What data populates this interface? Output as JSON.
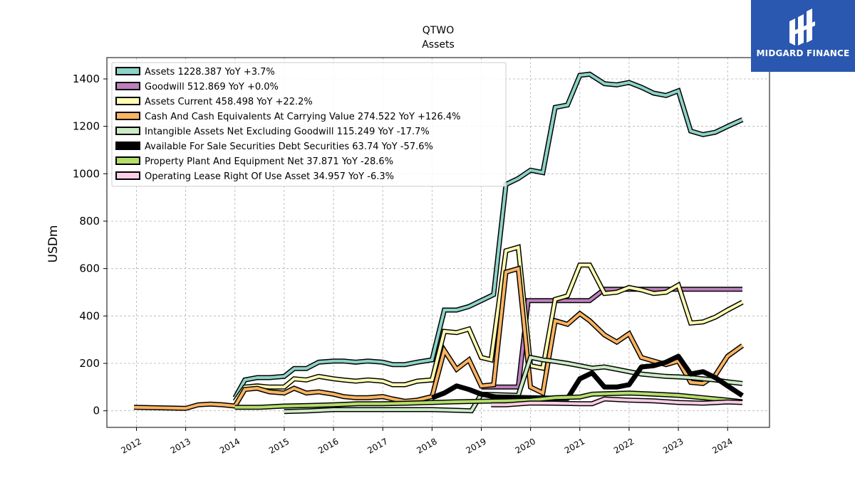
{
  "brand": {
    "name": "MIDGARD FINANCE"
  },
  "chart_data": {
    "type": "line",
    "title": "QTWO",
    "subtitle": "Assets",
    "ylabel": "USDm",
    "xlabel": "",
    "ylim": [
      -70,
      1490
    ],
    "xlim": [
      2011.4,
      2024.85
    ],
    "yticks": [
      0,
      200,
      400,
      600,
      800,
      1000,
      1200,
      1400
    ],
    "xticks": [
      "2012",
      "2013",
      "2014",
      "2015",
      "2016",
      "2017",
      "2018",
      "2019",
      "2020",
      "2021",
      "2022",
      "2023",
      "2024"
    ],
    "grid": true,
    "legend_position": "top-left",
    "series": [
      {
        "name": "Assets",
        "legend": "Assets  1228.387 YoY +3.7%",
        "color": "#8dd3c7",
        "width": 4,
        "x": [
          2014.0,
          2014.2,
          2014.45,
          2014.7,
          2015.0,
          2015.2,
          2015.45,
          2015.7,
          2016.0,
          2016.2,
          2016.45,
          2016.7,
          2017.0,
          2017.2,
          2017.45,
          2017.7,
          2018.0,
          2018.25,
          2018.5,
          2018.75,
          2019.0,
          2019.25,
          2019.5,
          2019.75,
          2020.0,
          2020.25,
          2020.5,
          2020.75,
          2021.0,
          2021.2,
          2021.5,
          2021.75,
          2022.0,
          2022.25,
          2022.5,
          2022.75,
          2023.0,
          2023.25,
          2023.5,
          2023.75,
          2024.0,
          2024.3
        ],
        "y": [
          55,
          130,
          140,
          140,
          145,
          178,
          178,
          205,
          210,
          210,
          205,
          210,
          205,
          195,
          195,
          205,
          215,
          425,
          425,
          440,
          465,
          490,
          955,
          980,
          1015,
          1005,
          1280,
          1290,
          1415,
          1420,
          1380,
          1375,
          1385,
          1365,
          1340,
          1330,
          1350,
          1180,
          1165,
          1175,
          1200,
          1228
        ]
      },
      {
        "name": "Goodwill",
        "legend": "Goodwill  512.869 YoY +0.0%",
        "color": "#bc80bd",
        "width": 4,
        "x": [
          2019.0,
          2019.75,
          2019.95,
          2021.2,
          2021.5,
          2024.3
        ],
        "y": [
          100,
          100,
          465,
          465,
          513,
          513
        ]
      },
      {
        "name": "Assets Current",
        "legend": "Assets Current  458.498 YoY +22.2%",
        "color": "#ffffb3",
        "width": 4,
        "x": [
          2014.0,
          2014.2,
          2014.45,
          2014.7,
          2015.0,
          2015.2,
          2015.45,
          2015.7,
          2016.0,
          2016.2,
          2016.45,
          2016.7,
          2017.0,
          2017.2,
          2017.45,
          2017.7,
          2018.0,
          2018.25,
          2018.5,
          2018.75,
          2019.0,
          2019.2,
          2019.5,
          2019.75,
          2020.0,
          2020.25,
          2020.5,
          2020.75,
          2021.0,
          2021.2,
          2021.5,
          2021.75,
          2022.0,
          2022.25,
          2022.5,
          2022.75,
          2023.0,
          2023.25,
          2023.5,
          2023.75,
          2024.0,
          2024.3
        ],
        "y": [
          40,
          100,
          105,
          100,
          100,
          135,
          130,
          145,
          135,
          130,
          125,
          130,
          125,
          110,
          110,
          125,
          130,
          335,
          330,
          345,
          225,
          215,
          675,
          690,
          190,
          180,
          470,
          485,
          615,
          615,
          495,
          500,
          520,
          510,
          495,
          500,
          530,
          370,
          375,
          395,
          425,
          458
        ]
      },
      {
        "name": "Cash And Cash Equivalents At Carrying Value",
        "legend": "Cash And Cash Equivalents At Carrying Value  274.522 YoY +126.4%",
        "color": "#fdb462",
        "width": 4,
        "x": [
          2011.95,
          2013.0,
          2013.25,
          2013.5,
          2013.75,
          2014.0,
          2014.2,
          2014.45,
          2014.7,
          2015.0,
          2015.2,
          2015.45,
          2015.7,
          2016.0,
          2016.2,
          2016.45,
          2016.7,
          2017.0,
          2017.2,
          2017.45,
          2017.7,
          2018.0,
          2018.25,
          2018.5,
          2018.75,
          2019.0,
          2019.25,
          2019.5,
          2019.75,
          2020.0,
          2020.25,
          2020.5,
          2020.75,
          2021.0,
          2021.2,
          2021.5,
          2021.75,
          2022.0,
          2022.25,
          2022.5,
          2022.75,
          2023.0,
          2023.25,
          2023.5,
          2023.75,
          2024.0,
          2024.3
        ],
        "y": [
          15,
          10,
          25,
          28,
          25,
          20,
          90,
          95,
          80,
          75,
          95,
          75,
          80,
          70,
          60,
          55,
          55,
          60,
          50,
          40,
          45,
          60,
          255,
          175,
          215,
          105,
          110,
          585,
          600,
          100,
          75,
          380,
          365,
          410,
          380,
          320,
          290,
          325,
          225,
          210,
          195,
          210,
          120,
          115,
          150,
          230,
          275
        ]
      },
      {
        "name": "Intangible Assets Net Excluding Goodwill",
        "legend": "Intangible Assets Net Excluding Goodwill  115.249 YoY -17.7%",
        "color": "#ccebc5",
        "width": 4,
        "x": [
          2015.0,
          2015.5,
          2016.0,
          2016.5,
          2017.0,
          2017.5,
          2018.0,
          2018.5,
          2018.8,
          2019.0,
          2019.75,
          2020.0,
          2020.25,
          2020.5,
          2020.75,
          2021.0,
          2021.25,
          2021.5,
          2021.75,
          2022.0,
          2022.25,
          2022.5,
          2022.75,
          2023.0,
          2023.25,
          2023.5,
          2023.75,
          2024.0,
          2024.3
        ],
        "y": [
          -3,
          0,
          5,
          5,
          5,
          5,
          5,
          2,
          0,
          70,
          65,
          225,
          215,
          208,
          200,
          190,
          180,
          185,
          175,
          165,
          155,
          150,
          145,
          143,
          140,
          135,
          130,
          122,
          115
        ]
      },
      {
        "name": "Available For Sale Securities Debt Securities",
        "legend": "Available For Sale Securities Debt Securities  63.74 YoY -57.6%",
        "color": "#000000",
        "width": 7,
        "x": [
          2018.0,
          2018.25,
          2018.5,
          2018.75,
          2019.0,
          2019.3,
          2020.75,
          2021.0,
          2021.25,
          2021.5,
          2021.75,
          2022.0,
          2022.25,
          2022.5,
          2022.75,
          2023.0,
          2023.25,
          2023.5,
          2023.75,
          2024.0,
          2024.3
        ],
        "y": [
          55,
          75,
          105,
          90,
          70,
          58,
          52,
          135,
          160,
          100,
          100,
          110,
          185,
          190,
          205,
          230,
          155,
          165,
          140,
          105,
          64
        ]
      },
      {
        "name": "Property Plant And Equipment Net",
        "legend": "Property Plant And Equipment Net  37.871 YoY -28.6%",
        "color": "#b3de69",
        "width": 4,
        "x": [
          2014.0,
          2014.5,
          2015.0,
          2015.5,
          2016.0,
          2016.5,
          2017.0,
          2017.5,
          2018.0,
          2018.5,
          2019.0,
          2019.5,
          2020.0,
          2020.5,
          2021.0,
          2021.25,
          2021.5,
          2022.0,
          2022.5,
          2023.0,
          2023.5,
          2024.0,
          2024.3
        ],
        "y": [
          15,
          15,
          20,
          22,
          25,
          30,
          30,
          32,
          35,
          38,
          40,
          42,
          45,
          55,
          58,
          70,
          72,
          75,
          70,
          65,
          55,
          45,
          38
        ]
      },
      {
        "name": "Operating Lease Right Of Use Asset",
        "legend": "Operating Lease Right Of Use Asset  34.957 YoY -6.3%",
        "color": "#fccde5",
        "width": 4,
        "x": [
          2019.2,
          2019.5,
          2020.0,
          2020.5,
          2021.0,
          2021.25,
          2021.5,
          2022.0,
          2022.5,
          2023.0,
          2023.5,
          2024.0,
          2024.3
        ],
        "y": [
          25,
          25,
          33,
          32,
          30,
          30,
          50,
          45,
          42,
          35,
          32,
          37,
          35
        ]
      }
    ]
  }
}
